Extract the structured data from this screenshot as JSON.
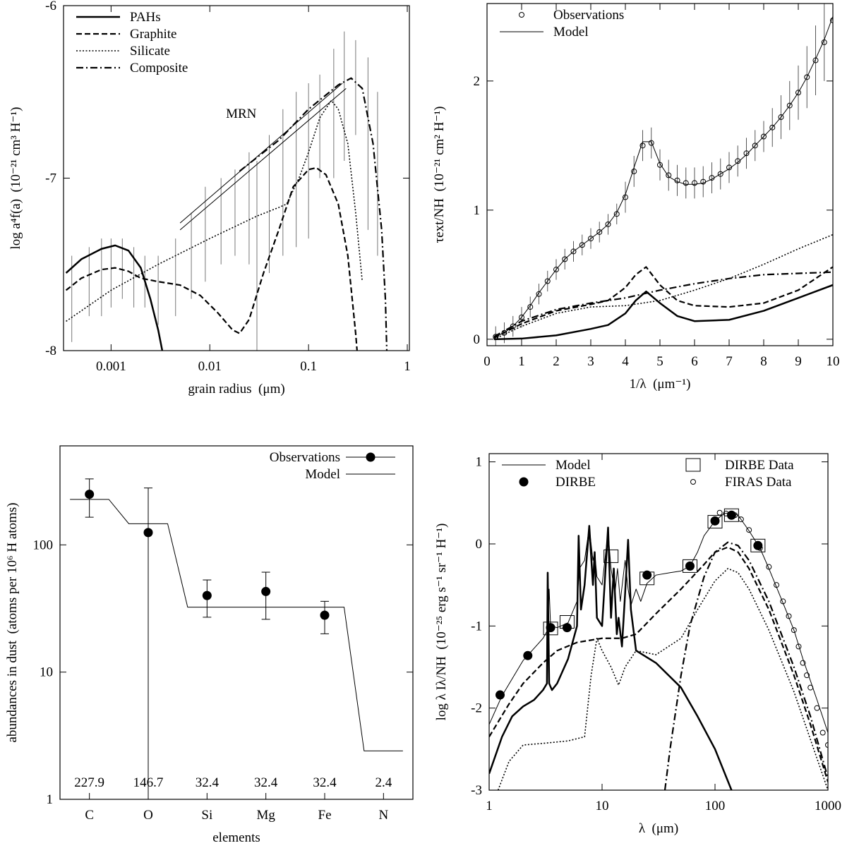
{
  "chart_data": [
    {
      "type": "line",
      "xlabel": "grain radius  (μm)",
      "ylabel": "log a⁴f(a)  (10⁻²¹ cm³ H⁻¹)",
      "xlog": true,
      "xlim": [
        0.00033,
        1.05
      ],
      "ylim": [
        -8,
        -6
      ],
      "xticks": [
        0.001,
        0.01,
        0.1,
        1
      ],
      "yticks": [
        -8,
        -7,
        -6
      ],
      "color": "#000000",
      "legend": "upper left",
      "series": [
        {
          "name": "PAHs",
          "style": "solid",
          "linewidth": 2.5,
          "x": [
            0.00035,
            0.0005,
            0.0008,
            0.0011,
            0.0015,
            0.002,
            0.0025,
            0.003,
            0.0033
          ],
          "values": [
            -7.55,
            -7.47,
            -7.41,
            -7.39,
            -7.42,
            -7.52,
            -7.7,
            -7.88,
            -8.0
          ]
        },
        {
          "name": "Graphite",
          "style": "dashed",
          "linewidth": 2.2,
          "x": [
            0.00035,
            0.0005,
            0.0008,
            0.0011,
            0.0015,
            0.002,
            0.003,
            0.005,
            0.008,
            0.012,
            0.017,
            0.02,
            0.025,
            0.035,
            0.05,
            0.07,
            0.1,
            0.12,
            0.15,
            0.2,
            0.25,
            0.3,
            0.31
          ],
          "values": [
            -7.65,
            -7.58,
            -7.53,
            -7.52,
            -7.54,
            -7.58,
            -7.6,
            -7.62,
            -7.68,
            -7.78,
            -7.88,
            -7.9,
            -7.82,
            -7.55,
            -7.3,
            -7.05,
            -6.95,
            -6.94,
            -6.98,
            -7.15,
            -7.45,
            -7.9,
            -8.0
          ]
        },
        {
          "name": "Silicate",
          "style": "dotted",
          "linewidth": 1.6,
          "x": [
            0.00035,
            0.001,
            0.003,
            0.01,
            0.03,
            0.05,
            0.06,
            0.08,
            0.1,
            0.13,
            0.17,
            0.2,
            0.25,
            0.3,
            0.35
          ],
          "values": [
            -7.83,
            -7.65,
            -7.5,
            -7.35,
            -7.22,
            -7.17,
            -7.15,
            -7.0,
            -6.85,
            -6.65,
            -6.55,
            -6.6,
            -6.8,
            -7.2,
            -7.6
          ]
        },
        {
          "name": "Composite",
          "style": "dashdot",
          "linewidth": 2.2,
          "x": [
            0.02,
            0.05,
            0.1,
            0.2,
            0.27,
            0.35,
            0.45,
            0.55,
            0.6,
            0.62
          ],
          "values": [
            -6.96,
            -6.78,
            -6.6,
            -6.46,
            -6.42,
            -6.48,
            -6.8,
            -7.3,
            -7.7,
            -8.0
          ]
        }
      ],
      "errorbars": {
        "x": [
          0.0004,
          0.0006,
          0.0008,
          0.001,
          0.0013,
          0.0017,
          0.0022,
          0.003,
          0.0045,
          0.0065,
          0.009,
          0.013,
          0.018,
          0.025,
          0.03,
          0.04,
          0.055,
          0.075,
          0.1,
          0.13,
          0.18,
          0.23,
          0.3,
          0.4,
          0.5
        ],
        "low": [
          -7.95,
          -7.8,
          -7.8,
          -7.75,
          -7.7,
          -7.75,
          -7.75,
          -7.85,
          -7.8,
          -7.7,
          -7.6,
          -7.5,
          -7.45,
          -7.5,
          -8.0,
          -7.55,
          -7.45,
          -7.4,
          -7.35,
          -7.0,
          -7.0,
          -6.9,
          -6.75,
          -7.3,
          -7.45
        ],
        "high": [
          -7.45,
          -7.4,
          -7.35,
          -7.35,
          -7.35,
          -7.4,
          -7.45,
          -7.45,
          -7.35,
          -7.2,
          -7.05,
          -7.0,
          -6.95,
          -6.85,
          -6.9,
          -6.75,
          -6.6,
          -6.5,
          -6.45,
          -6.4,
          -6.25,
          -6.15,
          -6.2,
          -6.3,
          -6.5
        ]
      },
      "annotation": {
        "text": "MRN",
        "lines": [
          {
            "x": [
              0.005,
              0.22
            ],
            "y": [
              -7.26,
              -6.45
            ]
          },
          {
            "x": [
              0.005,
              0.24
            ],
            "y": [
              -7.3,
              -6.48
            ]
          }
        ]
      }
    },
    {
      "type": "line",
      "xlabel": "1/λ  (μm⁻¹)",
      "ylabel": "τext/NH  (10⁻²¹ cm² H⁻¹)",
      "xlim": [
        0,
        10
      ],
      "ylim": [
        -0.05,
        2.6
      ],
      "xticks": [
        0,
        1,
        2,
        3,
        4,
        5,
        6,
        7,
        8,
        9,
        10
      ],
      "yticks": [
        0,
        1,
        2
      ],
      "color": "#000000",
      "legend": "upper left",
      "x": [
        0.25,
        0.5,
        0.75,
        1,
        1.25,
        1.5,
        1.75,
        2,
        2.25,
        2.5,
        2.75,
        3,
        3.25,
        3.5,
        3.75,
        4,
        4.25,
        4.5,
        4.75,
        5,
        5.25,
        5.5,
        5.75,
        6,
        6.25,
        6.5,
        6.75,
        7,
        7.25,
        7.5,
        7.75,
        8,
        8.25,
        8.5,
        8.75,
        9,
        9.25,
        9.5,
        9.75,
        10
      ],
      "series": [
        {
          "name": "Observations",
          "marker": "circle-open",
          "values": [
            0.02,
            0.05,
            0.1,
            0.17,
            0.25,
            0.35,
            0.45,
            0.54,
            0.62,
            0.68,
            0.73,
            0.78,
            0.83,
            0.89,
            0.97,
            1.1,
            1.3,
            1.5,
            1.52,
            1.35,
            1.27,
            1.23,
            1.21,
            1.21,
            1.22,
            1.25,
            1.28,
            1.33,
            1.38,
            1.44,
            1.5,
            1.57,
            1.64,
            1.72,
            1.81,
            1.91,
            2.03,
            2.16,
            2.3,
            2.47
          ],
          "errors": [
            0.08,
            0.08,
            0.08,
            0.08,
            0.08,
            0.08,
            0.08,
            0.08,
            0.08,
            0.08,
            0.08,
            0.08,
            0.08,
            0.08,
            0.08,
            0.12,
            0.12,
            0.12,
            0.12,
            0.12,
            0.12,
            0.12,
            0.12,
            0.12,
            0.12,
            0.12,
            0.12,
            0.12,
            0.12,
            0.12,
            0.12,
            0.12,
            0.15,
            0.17,
            0.19,
            0.21,
            0.24,
            0.27,
            0.3,
            0.33
          ]
        },
        {
          "name": "Model",
          "style": "solid",
          "linewidth": 1,
          "values": [
            0.02,
            0.05,
            0.1,
            0.17,
            0.26,
            0.36,
            0.45,
            0.54,
            0.62,
            0.68,
            0.73,
            0.78,
            0.83,
            0.89,
            0.98,
            1.12,
            1.33,
            1.53,
            1.53,
            1.36,
            1.26,
            1.22,
            1.2,
            1.2,
            1.21,
            1.24,
            1.28,
            1.32,
            1.37,
            1.43,
            1.5,
            1.57,
            1.64,
            1.72,
            1.81,
            1.91,
            2.03,
            2.17,
            2.32,
            2.5
          ]
        },
        {
          "style": "solid",
          "linewidth": 2.5,
          "x": [
            0.2,
            1,
            2,
            3,
            3.5,
            4,
            4.3,
            4.6,
            5,
            5.5,
            6,
            7,
            8,
            9,
            10
          ],
          "values": [
            0,
            0.005,
            0.03,
            0.08,
            0.11,
            0.2,
            0.3,
            0.37,
            0.28,
            0.18,
            0.14,
            0.15,
            0.22,
            0.32,
            0.42
          ]
        },
        {
          "style": "dashed",
          "linewidth": 2.2,
          "x": [
            0.2,
            1,
            2,
            3,
            3.5,
            4,
            4.3,
            4.6,
            5,
            5.5,
            6,
            7,
            8,
            9,
            10
          ],
          "values": [
            0.01,
            0.12,
            0.22,
            0.27,
            0.3,
            0.4,
            0.5,
            0.56,
            0.42,
            0.3,
            0.26,
            0.25,
            0.28,
            0.38,
            0.56
          ]
        },
        {
          "style": "dotted",
          "linewidth": 1.6,
          "x": [
            0.2,
            1,
            2,
            3,
            4,
            5,
            6,
            7,
            8,
            9,
            10
          ],
          "values": [
            0,
            0.1,
            0.2,
            0.25,
            0.26,
            0.3,
            0.38,
            0.47,
            0.58,
            0.7,
            0.81
          ]
        },
        {
          "style": "dashdot",
          "linewidth": 2.2,
          "x": [
            0.2,
            1,
            2,
            3,
            4,
            5,
            6,
            7,
            8,
            9,
            10
          ],
          "values": [
            0.02,
            0.14,
            0.23,
            0.28,
            0.32,
            0.38,
            0.43,
            0.47,
            0.5,
            0.51,
            0.52
          ]
        }
      ]
    },
    {
      "type": "category",
      "xlabel": "elements",
      "ylabel": "abundances in dust  (atoms per 10⁶ H atoms)",
      "ylog": true,
      "ylim": [
        1,
        600
      ],
      "yticks": [
        1,
        10,
        100
      ],
      "categories": [
        "C",
        "O",
        "Si",
        "Mg",
        "Fe",
        "N"
      ],
      "color": "#000000",
      "legend": "upper right",
      "series": [
        {
          "name": "Observations",
          "marker": "circle",
          "values": [
            250,
            125,
            40,
            43,
            28,
            null
          ],
          "low": [
            165,
            1,
            27,
            26,
            20,
            null
          ],
          "high": [
            330,
            280,
            53,
            61,
            36,
            null
          ]
        },
        {
          "name": "Model",
          "style": "step",
          "linewidth": 1,
          "values": [
            227.9,
            146.7,
            32.4,
            32.4,
            32.4,
            2.4
          ]
        }
      ]
    },
    {
      "type": "line",
      "xlabel": "λ  (μm)",
      "ylabel": "log λ Iλ/NH  (10⁻²⁵ erg s⁻¹ sr⁻¹ H⁻¹)",
      "xlog": true,
      "xlim": [
        1,
        1000
      ],
      "ylim": [
        -3,
        1.1
      ],
      "xticks": [
        1,
        10,
        100,
        1000
      ],
      "yticks": [
        -3,
        -2,
        -1,
        0,
        1
      ],
      "color": "#000000",
      "legend": "upper left",
      "legend_columns": 2,
      "series": [
        {
          "name": "Model",
          "style": "solid",
          "linewidth": 1,
          "x": [
            1,
            1.3,
            2,
            3,
            3.3,
            3.4,
            3.5,
            4,
            5,
            6,
            6.3,
            7,
            7.7,
            8.3,
            8.6,
            9,
            10,
            11.3,
            12,
            13,
            13.7,
            14.5,
            16,
            17,
            18,
            20,
            22,
            25,
            30,
            40,
            50,
            60,
            70,
            80,
            100,
            120,
            140,
            160,
            200,
            250,
            300,
            400,
            500,
            600,
            800,
            1000
          ],
          "values": [
            -2.2,
            -1.85,
            -1.42,
            -1.15,
            -1.05,
            -0.55,
            -1.0,
            -1.02,
            -0.96,
            -0.7,
            -0.3,
            -0.2,
            0.2,
            -0.2,
            -0.1,
            -0.4,
            -0.5,
            0.15,
            -0.3,
            -0.6,
            -0.3,
            -0.7,
            -0.2,
            -0.55,
            -0.75,
            -0.55,
            -0.7,
            -0.48,
            -0.38,
            -0.35,
            -0.33,
            -0.27,
            -0.1,
            0.1,
            0.28,
            0.37,
            0.38,
            0.35,
            0.16,
            -0.05,
            -0.3,
            -0.72,
            -1.05,
            -1.4,
            -1.9,
            -2.3
          ]
        },
        {
          "name": "DIRBE",
          "marker": "circle",
          "x": [
            1.25,
            2.2,
            3.5,
            4.9,
            25,
            60,
            100,
            140,
            240
          ],
          "values": [
            -1.84,
            -1.36,
            -1.02,
            -1.02,
            -0.38,
            -0.27,
            0.28,
            0.35,
            -0.02
          ]
        },
        {
          "name": "DIRBE Data",
          "marker": "square",
          "x": [
            3.5,
            4.9,
            12,
            25,
            60,
            100,
            140,
            240
          ],
          "values": [
            -1.03,
            -0.95,
            -0.15,
            -0.42,
            -0.27,
            0.27,
            0.35,
            -0.02
          ]
        },
        {
          "name": "FIRAS Data",
          "marker": "circle-open",
          "x": [
            110,
            125,
            140,
            150,
            170,
            200,
            250,
            300,
            350,
            400,
            450,
            500,
            550,
            600,
            650,
            700,
            800,
            900,
            1000
          ],
          "values": [
            0.38,
            0.37,
            0.36,
            0.35,
            0.3,
            0.17,
            -0.05,
            -0.28,
            -0.5,
            -0.7,
            -0.88,
            -1.05,
            -1.25,
            -1.45,
            -1.6,
            -1.75,
            -2.0,
            -2.3,
            -2.45
          ]
        },
        {
          "style": "solid",
          "linewidth": 2.5,
          "x": [
            1,
            1.3,
            1.6,
            2,
            2.5,
            3,
            3.25,
            3.3,
            3.4,
            3.6,
            4,
            5,
            6,
            6.2,
            6.5,
            7,
            7.7,
            8.3,
            8.6,
            9,
            10,
            11.3,
            12,
            12.7,
            13.5,
            14,
            15,
            16,
            17,
            18,
            20,
            30,
            50,
            70,
            100,
            140
          ],
          "values": [
            -2.8,
            -2.35,
            -2.1,
            -1.98,
            -1.9,
            -1.78,
            -1.7,
            -0.35,
            -1.7,
            -1.78,
            -1.7,
            -1.4,
            -1.0,
            0.1,
            -0.8,
            -0.5,
            0.22,
            -0.5,
            -0.1,
            -0.9,
            -1.0,
            0.2,
            -0.9,
            -0.3,
            -1.1,
            -0.9,
            -1.25,
            -0.6,
            0.05,
            -0.8,
            -1.3,
            -1.45,
            -1.75,
            -2.1,
            -2.5,
            -3.0
          ]
        },
        {
          "style": "dashed",
          "linewidth": 2.2,
          "x": [
            1,
            1.5,
            2,
            3,
            4,
            6,
            10,
            15,
            20,
            30,
            50,
            80,
            100,
            130,
            160,
            200,
            300,
            500,
            700,
            1000
          ],
          "values": [
            -2.35,
            -1.95,
            -1.7,
            -1.45,
            -1.3,
            -1.2,
            -1.15,
            -1.15,
            -1.1,
            -0.85,
            -0.55,
            -0.25,
            -0.1,
            -0.04,
            -0.1,
            -0.3,
            -0.8,
            -1.6,
            -2.2,
            -2.9
          ]
        },
        {
          "style": "dotted",
          "linewidth": 1.6,
          "x": [
            1.2,
            1.5,
            2,
            3,
            5,
            7,
            8,
            9,
            10,
            12,
            14,
            16,
            20,
            30,
            50,
            70,
            100,
            130,
            160,
            200,
            300,
            500,
            1000
          ],
          "values": [
            -3.0,
            -2.65,
            -2.45,
            -2.43,
            -2.4,
            -2.35,
            -1.6,
            -1.15,
            -1.3,
            -1.5,
            -1.72,
            -1.5,
            -1.3,
            -1.35,
            -1.15,
            -0.8,
            -0.45,
            -0.3,
            -0.35,
            -0.55,
            -1.05,
            -1.8,
            -3.0
          ]
        },
        {
          "style": "dashdot",
          "linewidth": 2.2,
          "x": [
            36,
            40,
            50,
            60,
            80,
            100,
            130,
            160,
            200,
            300,
            500,
            700,
            1000
          ],
          "values": [
            -3.0,
            -2.5,
            -1.6,
            -1.0,
            -0.4,
            -0.1,
            0.02,
            -0.02,
            -0.2,
            -0.7,
            -1.5,
            -2.1,
            -2.85
          ]
        }
      ]
    }
  ]
}
